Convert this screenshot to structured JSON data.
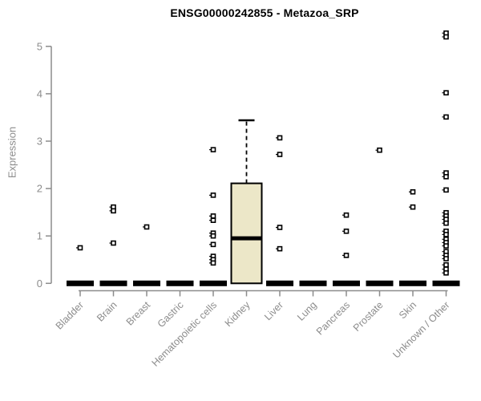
{
  "window": {
    "title": "ENSG00000242855 - Metazoa_SRP"
  },
  "chart_data": {
    "type": "boxplot",
    "title": "ENSG00000242855 - Metazoa_SRP",
    "xlabel": "",
    "ylabel": "Expression",
    "ylim": [
      0,
      5.4
    ],
    "yticks": [
      0,
      1,
      2,
      3,
      4,
      5
    ],
    "grid": false,
    "legend": "none",
    "axis_color": "#8c8c8c",
    "label_color": "#8c8c8c",
    "title_color": "#000000",
    "box_fill": "#ece7c8",
    "box_border": "#000000",
    "median_color": "#000000",
    "outlier_marker": "open-square",
    "categories": [
      "Bladder",
      "Brain",
      "Breast",
      "Gastric",
      "Hematopoietic cells",
      "Kidney",
      "Liver",
      "Lung",
      "Pancreas",
      "Prostate",
      "Skin",
      "Unknown / Other"
    ],
    "boxes": [
      {
        "category": "Bladder",
        "q1": 0,
        "median": 0,
        "q3": 0,
        "whisker_low": 0,
        "whisker_high": 0,
        "outliers": [
          0.75
        ]
      },
      {
        "category": "Brain",
        "q1": 0,
        "median": 0,
        "q3": 0,
        "whisker_low": 0,
        "whisker_high": 0,
        "outliers": [
          1.61,
          1.53,
          0.85
        ]
      },
      {
        "category": "Breast",
        "q1": 0,
        "median": 0,
        "q3": 0,
        "whisker_low": 0,
        "whisker_high": 0,
        "outliers": [
          1.19
        ]
      },
      {
        "category": "Gastric",
        "q1": 0,
        "median": 0,
        "q3": 0,
        "whisker_low": 0,
        "whisker_high": 0,
        "outliers": []
      },
      {
        "category": "Hematopoietic cells",
        "q1": 0,
        "median": 0,
        "q3": 0,
        "whisker_low": 0,
        "whisker_high": 0,
        "outliers": [
          2.82,
          1.86,
          1.42,
          1.33,
          1.06,
          1.0,
          0.82,
          0.57,
          0.5,
          0.43
        ]
      },
      {
        "category": "Kidney",
        "q1": 0,
        "median": 0.95,
        "q3": 2.11,
        "whisker_low": 0,
        "whisker_high": 3.44,
        "outliers": []
      },
      {
        "category": "Liver",
        "q1": 0,
        "median": 0,
        "q3": 0,
        "whisker_low": 0,
        "whisker_high": 0,
        "outliers": [
          3.07,
          2.72,
          1.18,
          0.73
        ]
      },
      {
        "category": "Lung",
        "q1": 0,
        "median": 0,
        "q3": 0,
        "whisker_low": 0,
        "whisker_high": 0,
        "outliers": []
      },
      {
        "category": "Pancreas",
        "q1": 0,
        "median": 0,
        "q3": 0,
        "whisker_low": 0,
        "whisker_high": 0,
        "outliers": [
          1.44,
          1.1,
          0.59
        ]
      },
      {
        "category": "Prostate",
        "q1": 0,
        "median": 0,
        "q3": 0,
        "whisker_low": 0,
        "whisker_high": 0,
        "outliers": [
          2.81
        ]
      },
      {
        "category": "Skin",
        "q1": 0,
        "median": 0,
        "q3": 0,
        "whisker_low": 0,
        "whisker_high": 0,
        "outliers": [
          1.93,
          1.61
        ]
      },
      {
        "category": "Unknown / Other",
        "q1": 0,
        "median": 0,
        "q3": 0,
        "whisker_low": 0,
        "whisker_high": 0,
        "outliers": [
          5.28,
          5.2,
          4.02,
          3.51,
          2.33,
          2.25,
          1.97,
          1.49,
          1.42,
          1.35,
          1.27,
          1.1,
          1.03,
          0.93,
          0.86,
          0.79,
          0.67,
          0.59,
          0.52,
          0.39,
          0.3,
          0.22
        ]
      }
    ]
  }
}
